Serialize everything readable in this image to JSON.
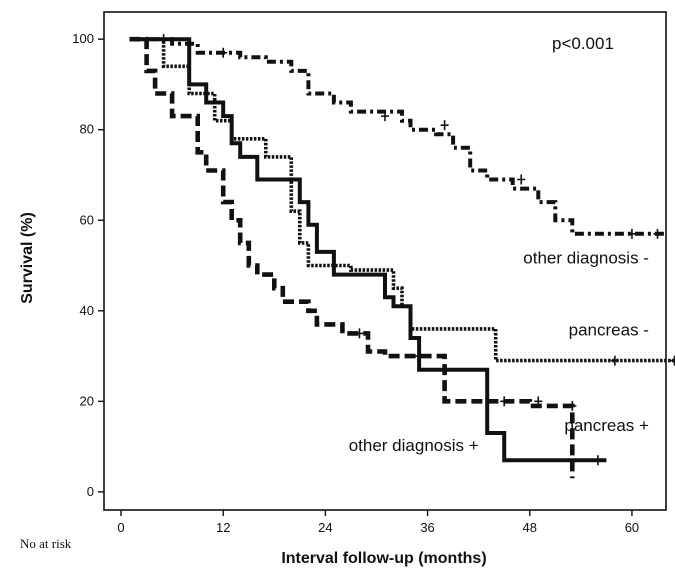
{
  "chart_data": {
    "type": "line",
    "xlabel": "Interval follow-up (months)",
    "ylabel": "Survival (%)",
    "xlim": [
      -2,
      64
    ],
    "ylim": [
      -4,
      106
    ],
    "x_ticks": [
      0,
      12,
      24,
      36,
      48,
      60
    ],
    "y_ticks": [
      0,
      20,
      40,
      60,
      80,
      100
    ],
    "grid": false,
    "pvalue_text": "p<0.001",
    "risk_label": "No at  risk",
    "series": [
      {
        "name": "other diagnosis -",
        "style": "dash-dot",
        "color": "#111111",
        "points": [
          [
            1,
            100
          ],
          [
            6,
            100
          ],
          [
            6,
            99
          ],
          [
            9,
            99
          ],
          [
            9,
            97
          ],
          [
            14,
            97
          ],
          [
            14,
            96
          ],
          [
            17,
            96
          ],
          [
            17,
            95
          ],
          [
            20,
            95
          ],
          [
            20,
            93
          ],
          [
            22,
            93
          ],
          [
            22,
            88
          ],
          [
            25,
            88
          ],
          [
            25,
            86
          ],
          [
            27,
            86
          ],
          [
            27,
            84
          ],
          [
            33,
            84
          ],
          [
            33,
            82
          ],
          [
            34,
            82
          ],
          [
            34,
            80
          ],
          [
            37,
            80
          ],
          [
            37,
            79
          ],
          [
            39,
            79
          ],
          [
            39,
            76
          ],
          [
            41,
            76
          ],
          [
            41,
            71
          ],
          [
            43,
            71
          ],
          [
            43,
            69
          ],
          [
            46,
            69
          ],
          [
            46,
            67
          ],
          [
            49,
            67
          ],
          [
            49,
            64
          ],
          [
            51,
            64
          ],
          [
            51,
            60
          ],
          [
            53,
            60
          ],
          [
            53,
            57
          ],
          [
            64,
            57
          ]
        ],
        "censor": [
          [
            5,
            100
          ],
          [
            12,
            97
          ],
          [
            31,
            83
          ],
          [
            38,
            81
          ],
          [
            47,
            69
          ],
          [
            60,
            57
          ],
          [
            63,
            57
          ]
        ]
      },
      {
        "name": "other diagnosis +",
        "style": "solid",
        "color": "#111111",
        "points": [
          [
            1,
            100
          ],
          [
            8,
            100
          ],
          [
            8,
            90
          ],
          [
            10,
            90
          ],
          [
            10,
            86
          ],
          [
            12,
            86
          ],
          [
            12,
            83
          ],
          [
            13,
            83
          ],
          [
            13,
            77
          ],
          [
            14,
            77
          ],
          [
            14,
            74
          ],
          [
            16,
            74
          ],
          [
            16,
            69
          ],
          [
            21,
            69
          ],
          [
            21,
            64
          ],
          [
            22,
            64
          ],
          [
            22,
            59
          ],
          [
            23,
            59
          ],
          [
            23,
            53
          ],
          [
            25,
            53
          ],
          [
            25,
            48
          ],
          [
            31,
            48
          ],
          [
            31,
            43
          ],
          [
            32,
            43
          ],
          [
            32,
            41
          ],
          [
            34,
            41
          ],
          [
            34,
            34
          ],
          [
            35,
            34
          ],
          [
            35,
            27
          ],
          [
            43,
            27
          ],
          [
            43,
            13
          ],
          [
            45,
            13
          ],
          [
            45,
            7
          ],
          [
            57,
            7
          ]
        ],
        "censor": [
          [
            56,
            7
          ]
        ]
      },
      {
        "name": "pancreas -",
        "style": "dotted",
        "color": "#111111",
        "points": [
          [
            1,
            100
          ],
          [
            5,
            100
          ],
          [
            5,
            94
          ],
          [
            8,
            94
          ],
          [
            8,
            88
          ],
          [
            11,
            88
          ],
          [
            11,
            82
          ],
          [
            13,
            82
          ],
          [
            13,
            78
          ],
          [
            17,
            78
          ],
          [
            17,
            74
          ],
          [
            20,
            74
          ],
          [
            20,
            62
          ],
          [
            21,
            62
          ],
          [
            21,
            55
          ],
          [
            22,
            55
          ],
          [
            22,
            50
          ],
          [
            27,
            50
          ],
          [
            27,
            49
          ],
          [
            32,
            49
          ],
          [
            32,
            45
          ],
          [
            33,
            45
          ],
          [
            33,
            41
          ],
          [
            34,
            41
          ],
          [
            34,
            36
          ],
          [
            44,
            36
          ],
          [
            44,
            29
          ],
          [
            67,
            29
          ]
        ],
        "censor": [
          [
            58,
            29
          ],
          [
            65,
            29
          ]
        ]
      },
      {
        "name": "pancreas +",
        "style": "dashed",
        "color": "#111111",
        "points": [
          [
            1,
            100
          ],
          [
            3,
            100
          ],
          [
            3,
            93
          ],
          [
            4,
            93
          ],
          [
            4,
            88
          ],
          [
            6,
            88
          ],
          [
            6,
            83
          ],
          [
            9,
            83
          ],
          [
            9,
            75
          ],
          [
            10,
            75
          ],
          [
            10,
            71
          ],
          [
            12,
            71
          ],
          [
            12,
            64
          ],
          [
            13,
            64
          ],
          [
            13,
            60
          ],
          [
            14,
            60
          ],
          [
            14,
            55
          ],
          [
            15,
            55
          ],
          [
            15,
            50
          ],
          [
            16,
            50
          ],
          [
            16,
            48
          ],
          [
            18,
            48
          ],
          [
            18,
            45
          ],
          [
            19,
            45
          ],
          [
            19,
            42
          ],
          [
            22,
            42
          ],
          [
            22,
            40
          ],
          [
            23,
            40
          ],
          [
            23,
            37
          ],
          [
            26,
            37
          ],
          [
            26,
            35
          ],
          [
            29,
            35
          ],
          [
            29,
            31
          ],
          [
            31,
            31
          ],
          [
            31,
            30
          ],
          [
            38,
            30
          ],
          [
            38,
            20
          ],
          [
            48,
            20
          ],
          [
            48,
            19
          ],
          [
            53,
            19
          ],
          [
            53,
            3
          ]
        ],
        "censor": [
          [
            28,
            35
          ],
          [
            35,
            30
          ],
          [
            45,
            20
          ],
          [
            49,
            20
          ],
          [
            53,
            19
          ]
        ]
      }
    ],
    "annotations": [
      {
        "text": "other diagnosis -",
        "x": 62,
        "y": 50.5
      },
      {
        "text": "pancreas -",
        "x": 62,
        "y": 34.5
      },
      {
        "text": "pancreas +",
        "x": 62,
        "y": 13.5
      },
      {
        "text": "other diagnosis +",
        "x": 42,
        "y": 9
      }
    ]
  }
}
